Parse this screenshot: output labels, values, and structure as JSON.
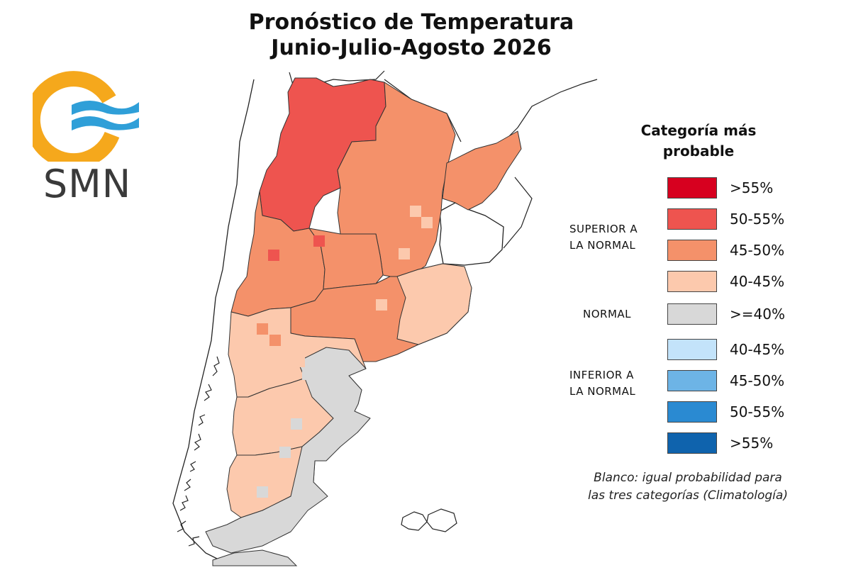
{
  "title": {
    "line1": "Pronóstico de Temperatura",
    "line2": "Junio-Julio-Agosto 2026"
  },
  "logo": {
    "text": "SMN",
    "colors": {
      "ring": "#f5a81c",
      "waves": "#2f9fd8",
      "text": "#3a3a3a"
    }
  },
  "legend": {
    "title_line1": "Categoría más",
    "title_line2": "probable",
    "groups": {
      "above": {
        "line1": "SUPERIOR A",
        "line2": "LA NORMAL"
      },
      "normal": {
        "line1": "NORMAL"
      },
      "below": {
        "line1": "INFERIOR A",
        "line2": "LA NORMAL"
      }
    },
    "items": [
      {
        "label": ">55%",
        "color": "#d7001f"
      },
      {
        "label": "50-55%",
        "color": "#ee544f"
      },
      {
        "label": "45-50%",
        "color": "#f4916a"
      },
      {
        "label": "40-45%",
        "color": "#fcc9ad"
      },
      {
        "label": ">=40%",
        "color": "#d8d8d8"
      },
      {
        "label": "40-45%",
        "color": "#c3e3fa"
      },
      {
        "label": "45-50%",
        "color": "#6db4e6"
      },
      {
        "label": "50-55%",
        "color": "#2a8ad2"
      },
      {
        "label": ">55%",
        "color": "#0f63ad"
      }
    ]
  },
  "note": {
    "line1": "Blanco: igual probabilidad para",
    "line2": "las tres categorías (Climatología)"
  }
}
